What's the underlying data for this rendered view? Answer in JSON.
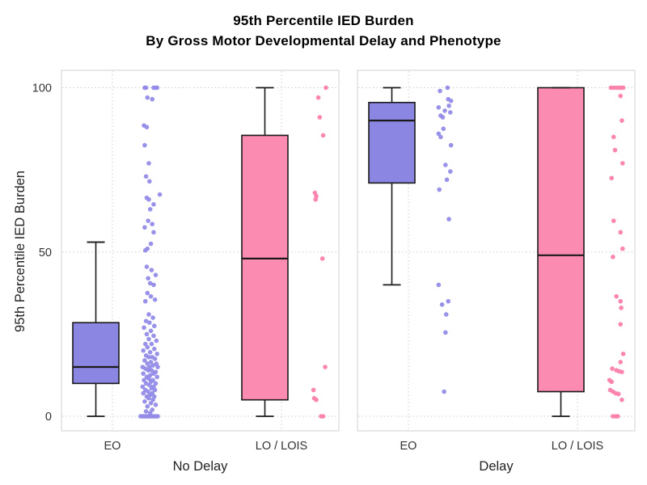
{
  "chart_data": {
    "type": "boxplot-jitter",
    "title_line1": "95th Percentile IED Burden",
    "title_line2": "By Gross Motor Developmental Delay and Phenotype",
    "ylabel": "95th Percentile IED Burden",
    "ylim": [
      0,
      100
    ],
    "yticks": [
      0,
      50,
      100
    ],
    "grid": "dotted",
    "legend_position": "none",
    "colors": {
      "EO": "#8C86E3",
      "LO / LOIS": "#FC8BB1"
    },
    "point_colors": {
      "EO": "#938CE8",
      "LO / LOIS": "#FB7FAB"
    },
    "panels": [
      {
        "xlabel": "No Delay",
        "groups": [
          {
            "label": "EO",
            "color": "#8C86E3",
            "point_color": "#938CE8",
            "box": {
              "whisker_low": 0,
              "q1": 10,
              "median": 15,
              "q3": 28.5,
              "whisker_high": 53
            },
            "points": [
              [
                100,
                -0.3
              ],
              [
                100,
                -0.2
              ],
              [
                100,
                0.35
              ],
              [
                100,
                0.5
              ],
              [
                100,
                0.6
              ],
              [
                97,
                -0.1
              ],
              [
                96.5,
                0.25
              ],
              [
                88.5,
                -0.35
              ],
              [
                88,
                -0.15
              ],
              [
                82.5,
                -0.3
              ],
              [
                77,
                0.0
              ],
              [
                73,
                -0.2
              ],
              [
                71.5,
                0.05
              ],
              [
                67.5,
                0.8
              ],
              [
                66.5,
                -0.15
              ],
              [
                66,
                0.0
              ],
              [
                64.5,
                0.35
              ],
              [
                63,
                0.1
              ],
              [
                59.5,
                -0.05
              ],
              [
                58.5,
                0.25
              ],
              [
                57.5,
                -0.3
              ],
              [
                56,
                0.35
              ],
              [
                52.5,
                0.15
              ],
              [
                51,
                -0.1
              ],
              [
                50.5,
                -0.25
              ],
              [
                45.5,
                -0.15
              ],
              [
                44.5,
                0.2
              ],
              [
                43,
                0.5
              ],
              [
                42,
                -0.05
              ],
              [
                40.5,
                0.1
              ],
              [
                40,
                0.35
              ],
              [
                37.5,
                -0.1
              ],
              [
                36.5,
                0.15
              ],
              [
                35.5,
                0.45
              ],
              [
                35,
                -0.25
              ],
              [
                31,
                0.0
              ],
              [
                30,
                0.3
              ],
              [
                29,
                -0.2
              ],
              [
                28.5,
                0.05
              ],
              [
                27.5,
                0.4
              ],
              [
                27,
                -0.35
              ],
              [
                26,
                0.15
              ],
              [
                25,
                -0.15
              ],
              [
                24.5,
                0.35
              ],
              [
                23.5,
                0.0
              ],
              [
                23,
                0.55
              ],
              [
                22,
                -0.25
              ],
              [
                22,
                0.2
              ],
              [
                21,
                -0.1
              ],
              [
                20.5,
                0.4
              ],
              [
                20,
                -0.4
              ],
              [
                19.5,
                0.1
              ],
              [
                19,
                0.6
              ],
              [
                18.5,
                -0.2
              ],
              [
                18,
                0.25
              ],
              [
                18,
                0.0
              ],
              [
                17.5,
                0.45
              ],
              [
                17,
                -0.3
              ],
              [
                16.5,
                0.15
              ],
              [
                16,
                0.55
              ],
              [
                16,
                -0.1
              ],
              [
                15.5,
                0.3
              ],
              [
                15,
                -0.45
              ],
              [
                15,
                0.05
              ],
              [
                15,
                0.65
              ],
              [
                14.5,
                -0.25
              ],
              [
                14,
                0.2
              ],
              [
                14,
                -0.05
              ],
              [
                13.5,
                0.5
              ],
              [
                13,
                -0.4
              ],
              [
                13,
                0.35
              ],
              [
                12.5,
                0.1
              ],
              [
                12,
                -0.15
              ],
              [
                12,
                0.6
              ],
              [
                11.5,
                0.0
              ],
              [
                11,
                0.3
              ],
              [
                11,
                -0.35
              ],
              [
                10.5,
                0.15
              ],
              [
                10,
                -0.2
              ],
              [
                10,
                0.5
              ],
              [
                9.5,
                0.05
              ],
              [
                9,
                -0.45
              ],
              [
                9,
                0.35
              ],
              [
                8.5,
                0.2
              ],
              [
                8,
                -0.25
              ],
              [
                8,
                0.45
              ],
              [
                7.5,
                -0.05
              ],
              [
                7,
                0.25
              ],
              [
                7,
                -0.4
              ],
              [
                6.5,
                0.1
              ],
              [
                6,
                0.4
              ],
              [
                6,
                -0.15
              ],
              [
                5.5,
                0.0
              ],
              [
                5,
                0.3
              ],
              [
                4.5,
                -0.3
              ],
              [
                4,
                0.15
              ],
              [
                3.5,
                0.5
              ],
              [
                3,
                -0.1
              ],
              [
                2,
                0.25
              ],
              [
                1.5,
                -0.2
              ],
              [
                1,
                0.1
              ],
              [
                0,
                -0.6
              ],
              [
                0,
                -0.45
              ],
              [
                0,
                -0.3
              ],
              [
                0,
                -0.18
              ],
              [
                0,
                -0.05
              ],
              [
                0,
                0.05
              ],
              [
                0,
                0.15
              ],
              [
                0,
                0.25
              ],
              [
                0,
                0.35
              ],
              [
                0,
                0.45
              ],
              [
                0,
                0.55
              ],
              [
                0,
                0.65
              ],
              [
                0,
                0.1
              ],
              [
                0,
                -0.38
              ]
            ]
          },
          {
            "label": "LO / LOIS",
            "color": "#FC8BB1",
            "point_color": "#FB7FAB",
            "box": {
              "whisker_low": 0,
              "q1": 5,
              "median": 48,
              "q3": 85.5,
              "whisker_high": 100
            },
            "points": [
              [
                100,
                0.35
              ],
              [
                97,
                -0.2
              ],
              [
                91,
                -0.1
              ],
              [
                85.5,
                0.15
              ],
              [
                68,
                -0.45
              ],
              [
                67,
                -0.35
              ],
              [
                66,
                -0.4
              ],
              [
                48,
                0.1
              ],
              [
                15,
                0.3
              ],
              [
                8,
                -0.55
              ],
              [
                5.5,
                -0.5
              ],
              [
                5,
                -0.35
              ],
              [
                0,
                0.0
              ],
              [
                0,
                0.15
              ]
            ]
          }
        ]
      },
      {
        "xlabel": "Delay",
        "groups": [
          {
            "label": "EO",
            "color": "#8C86E3",
            "point_color": "#938CE8",
            "box": {
              "whisker_low": 40,
              "q1": 71,
              "median": 90,
              "q3": 95.5,
              "whisker_high": 100
            },
            "points": [
              [
                100,
                0.2
              ],
              [
                99,
                -0.35
              ],
              [
                96.5,
                0.25
              ],
              [
                96,
                0.45
              ],
              [
                94.5,
                0.3
              ],
              [
                94,
                -0.45
              ],
              [
                93,
                0.0
              ],
              [
                92.5,
                0.4
              ],
              [
                91.5,
                -0.3
              ],
              [
                91,
                -0.15
              ],
              [
                87.5,
                -0.1
              ],
              [
                86,
                -0.45
              ],
              [
                85,
                -0.3
              ],
              [
                82.5,
                0.45
              ],
              [
                76.5,
                0.05
              ],
              [
                74.5,
                0.4
              ],
              [
                72,
                0.15
              ],
              [
                69,
                -0.4
              ],
              [
                60,
                0.3
              ],
              [
                40,
                -0.45
              ],
              [
                35,
                0.25
              ],
              [
                34,
                -0.2
              ],
              [
                31,
                0.1
              ],
              [
                25.5,
                0.05
              ],
              [
                7.5,
                -0.05
              ]
            ]
          },
          {
            "label": "LO / LOIS",
            "color": "#FC8BB1",
            "point_color": "#FB7FAB",
            "box": {
              "whisker_low": 0,
              "q1": 7.5,
              "median": 49,
              "q3": 100,
              "whisker_high": 100
            },
            "points": [
              [
                100,
                -0.45
              ],
              [
                100,
                -0.25
              ],
              [
                100,
                -0.05
              ],
              [
                100,
                0.15
              ],
              [
                100,
                0.3
              ],
              [
                100,
                0.45
              ],
              [
                97.5,
                0.25
              ],
              [
                90,
                0.35
              ],
              [
                85,
                -0.25
              ],
              [
                81,
                -0.15
              ],
              [
                77,
                0.4
              ],
              [
                72.5,
                -0.4
              ],
              [
                59.5,
                -0.25
              ],
              [
                56,
                0.25
              ],
              [
                51,
                0.4
              ],
              [
                48.5,
                -0.3
              ],
              [
                36.5,
                -0.05
              ],
              [
                35,
                0.25
              ],
              [
                33,
                0.3
              ],
              [
                28,
                0.25
              ],
              [
                19,
                0.45
              ],
              [
                16.5,
                0.25
              ],
              [
                14.5,
                -0.35
              ],
              [
                14,
                -0.05
              ],
              [
                13.7,
                0.15
              ],
              [
                13.5,
                0.35
              ],
              [
                11,
                -0.55
              ],
              [
                10.5,
                -0.4
              ],
              [
                8,
                -0.5
              ],
              [
                7.5,
                -0.3
              ],
              [
                7,
                -0.1
              ],
              [
                6.8,
                0.1
              ],
              [
                5,
                0.35
              ],
              [
                0,
                -0.3
              ],
              [
                0,
                -0.1
              ],
              [
                0,
                0.05
              ]
            ]
          }
        ]
      }
    ]
  }
}
